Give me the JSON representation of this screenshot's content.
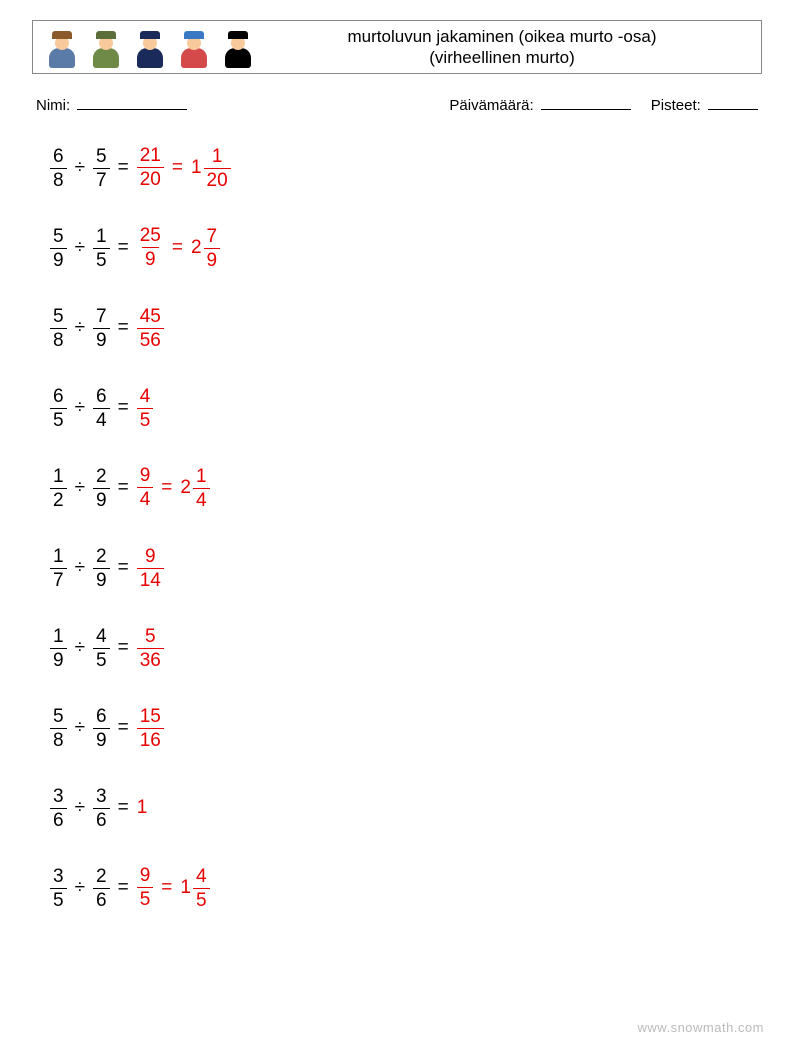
{
  "colors": {
    "text": "#000000",
    "answer": "#e60000",
    "border": "#888888",
    "watermark": "#bbbbbb",
    "background": "#ffffff"
  },
  "typography": {
    "title_fontsize": 17,
    "info_fontsize": 15,
    "problem_fontsize": 19,
    "watermark_fontsize": 13,
    "font_family": "Arial"
  },
  "header": {
    "title_line1": "murtoluvun jakaminen (oikea murto -osa)",
    "title_line2": "(virheellinen murto)",
    "icons": [
      {
        "name": "person-blonde",
        "hat": "#8a5a2a",
        "head": "#f7c99b",
        "body": "#5a7aa8"
      },
      {
        "name": "person-soldier",
        "hat": "#5a6e3a",
        "head": "#f7c99b",
        "body": "#6e8a46"
      },
      {
        "name": "person-police",
        "hat": "#1a2a5a",
        "head": "#f7c99b",
        "body": "#1a2a5a"
      },
      {
        "name": "person-bluehat",
        "hat": "#3a7ac4",
        "head": "#f7c99b",
        "body": "#d44a4a"
      },
      {
        "name": "person-grad",
        "hat": "#000000",
        "head": "#f7c99b",
        "body": "#000000"
      }
    ]
  },
  "info": {
    "name_label": "Nimi:",
    "date_label": "Päivämäärä:",
    "score_label": "Pisteet:",
    "name_blank_width": 110,
    "date_blank_width": 90,
    "score_blank_width": 50
  },
  "operator": "÷",
  "equals": "=",
  "problems": [
    {
      "a": {
        "n": 6,
        "d": 8
      },
      "b": {
        "n": 5,
        "d": 7
      },
      "ans_frac": {
        "n": 21,
        "d": 20
      },
      "ans_mixed": {
        "w": 1,
        "n": 1,
        "d": 20
      }
    },
    {
      "a": {
        "n": 5,
        "d": 9
      },
      "b": {
        "n": 1,
        "d": 5
      },
      "ans_frac": {
        "n": 25,
        "d": 9
      },
      "ans_mixed": {
        "w": 2,
        "n": 7,
        "d": 9
      }
    },
    {
      "a": {
        "n": 5,
        "d": 8
      },
      "b": {
        "n": 7,
        "d": 9
      },
      "ans_frac": {
        "n": 45,
        "d": 56
      }
    },
    {
      "a": {
        "n": 6,
        "d": 5
      },
      "b": {
        "n": 6,
        "d": 4
      },
      "ans_frac": {
        "n": 4,
        "d": 5
      }
    },
    {
      "a": {
        "n": 1,
        "d": 2
      },
      "b": {
        "n": 2,
        "d": 9
      },
      "ans_frac": {
        "n": 9,
        "d": 4
      },
      "ans_mixed": {
        "w": 2,
        "n": 1,
        "d": 4
      }
    },
    {
      "a": {
        "n": 1,
        "d": 7
      },
      "b": {
        "n": 2,
        "d": 9
      },
      "ans_frac": {
        "n": 9,
        "d": 14
      }
    },
    {
      "a": {
        "n": 1,
        "d": 9
      },
      "b": {
        "n": 4,
        "d": 5
      },
      "ans_frac": {
        "n": 5,
        "d": 36
      }
    },
    {
      "a": {
        "n": 5,
        "d": 8
      },
      "b": {
        "n": 6,
        "d": 9
      },
      "ans_frac": {
        "n": 15,
        "d": 16
      }
    },
    {
      "a": {
        "n": 3,
        "d": 6
      },
      "b": {
        "n": 3,
        "d": 6
      },
      "ans_int": 1
    },
    {
      "a": {
        "n": 3,
        "d": 5
      },
      "b": {
        "n": 2,
        "d": 6
      },
      "ans_frac": {
        "n": 9,
        "d": 5
      },
      "ans_mixed": {
        "w": 1,
        "n": 4,
        "d": 5
      }
    }
  ],
  "watermark": "www.snowmath.com"
}
